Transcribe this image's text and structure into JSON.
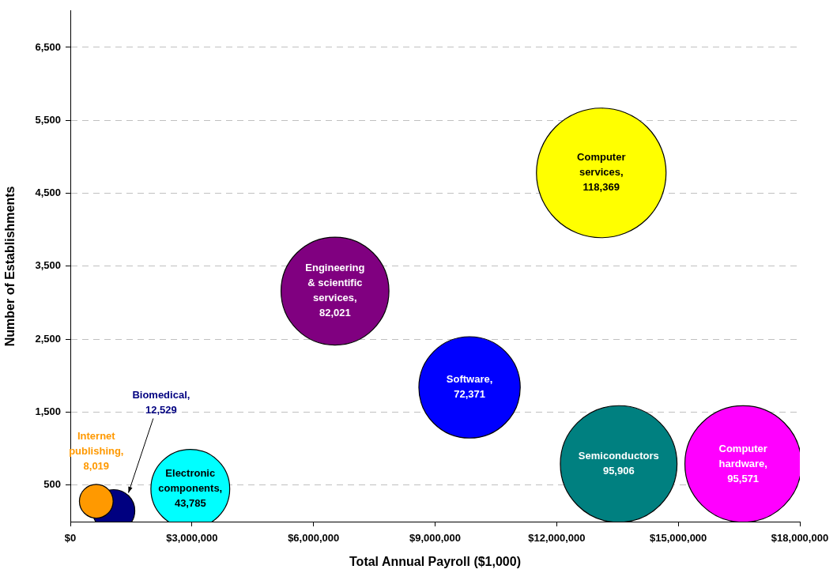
{
  "chart_data": {
    "type": "bubble",
    "xlabel": "Total Annual Payroll ($1,000)",
    "ylabel": "Number of Establishments",
    "xlim": [
      0,
      18000000
    ],
    "xticks": [
      {
        "value": 0,
        "label": "$0"
      },
      {
        "value": 3000000,
        "label": "$3,000,000"
      },
      {
        "value": 6000000,
        "label": "$6,000,000"
      },
      {
        "value": 9000000,
        "label": "$9,000,000"
      },
      {
        "value": 12000000,
        "label": "$12,000,000"
      },
      {
        "value": 15000000,
        "label": "$15,000,000"
      },
      {
        "value": 18000000,
        "label": "$18,000,000"
      }
    ],
    "ylim": [
      0,
      7000
    ],
    "yticks": [
      {
        "value": 500,
        "label": "500"
      },
      {
        "value": 1500,
        "label": "1,500"
      },
      {
        "value": 2500,
        "label": "2,500"
      },
      {
        "value": 3500,
        "label": "3,500"
      },
      {
        "value": 4500,
        "label": "4,500"
      },
      {
        "value": 5500,
        "label": "5,500"
      },
      {
        "value": 6500,
        "label": "6,500"
      }
    ],
    "grid": "y",
    "legend": false,
    "series": [
      {
        "name": "Computer services,",
        "color": "#ffff00",
        "x": [
          13100000
        ],
        "values": [
          4780
        ],
        "sizes": [
          118369
        ],
        "value_labels": [
          "118,369"
        ]
      },
      {
        "name": "Engineering & scientific services,",
        "color": "#800080",
        "x": [
          6530000
        ],
        "values": [
          3160
        ],
        "sizes": [
          82021
        ],
        "value_labels": [
          "82,021"
        ]
      },
      {
        "name": "Software,",
        "color": "#0000ff",
        "x": [
          9850000
        ],
        "values": [
          1840
        ],
        "sizes": [
          72371
        ],
        "value_labels": [
          "72,371"
        ]
      },
      {
        "name": "Semiconductors",
        "color": "#008080",
        "x": [
          13530000
        ],
        "values": [
          790
        ],
        "sizes": [
          95906
        ],
        "value_labels": [
          "95,906"
        ]
      },
      {
        "name": "Computer hardware,",
        "color": "#ff00ff",
        "x": [
          16600000
        ],
        "values": [
          790
        ],
        "sizes": [
          95571
        ],
        "value_labels": [
          "95,571"
        ]
      },
      {
        "name": "Electronic components,",
        "color": "#00ffff",
        "x": [
          2960000
        ],
        "values": [
          450
        ],
        "sizes": [
          43785
        ],
        "value_labels": [
          "43,785"
        ]
      },
      {
        "name": "Internet publishing,",
        "color": "#ff9900",
        "x": [
          640000
        ],
        "values": [
          280
        ],
        "sizes": [
          8019
        ],
        "value_labels": [
          "8,019"
        ]
      },
      {
        "name": "Biomedical,",
        "color": "#000080",
        "x": [
          1070000
        ],
        "values": [
          150
        ],
        "sizes": [
          12529
        ],
        "value_labels": [
          "12,529"
        ]
      }
    ]
  }
}
